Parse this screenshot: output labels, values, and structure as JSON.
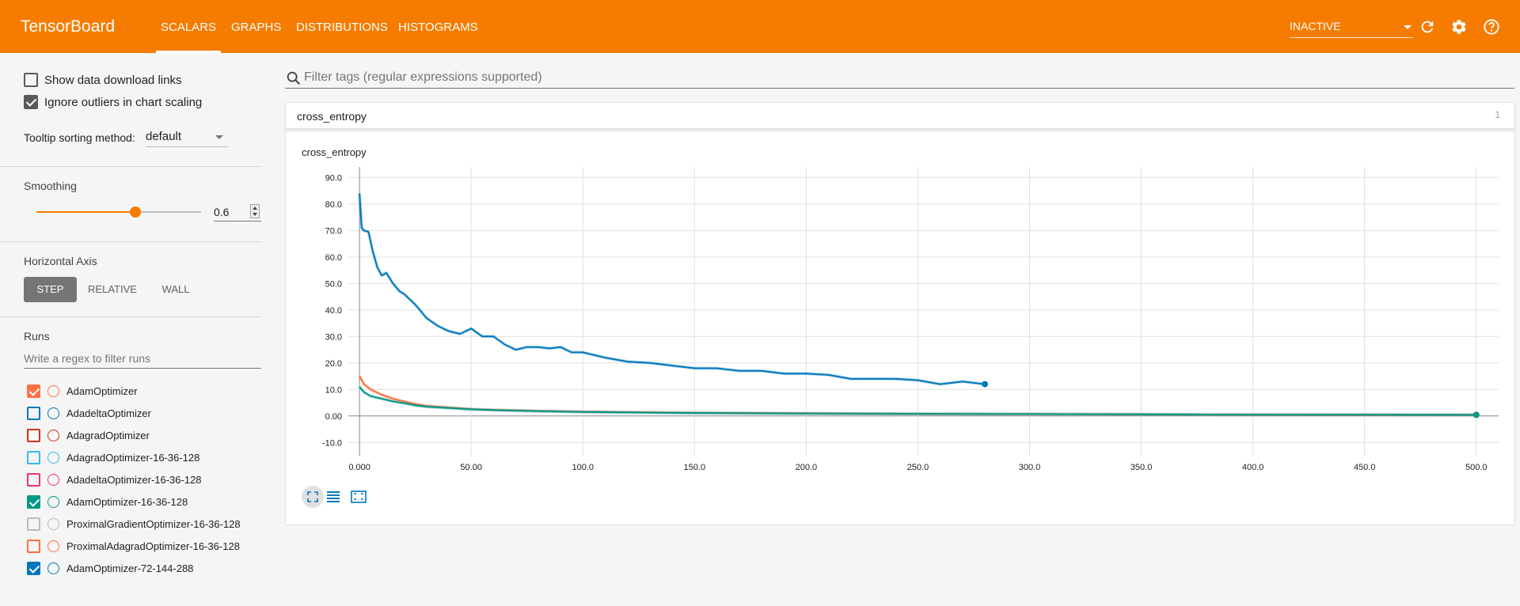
{
  "header": {
    "brand": "TensorBoard",
    "tabs": [
      {
        "label": "SCALARS",
        "active": true
      },
      {
        "label": "GRAPHS",
        "active": false
      },
      {
        "label": "DISTRIBUTIONS",
        "active": false
      },
      {
        "label": "HISTOGRAMS",
        "active": false
      }
    ],
    "status_select": "INACTIVE",
    "icons": [
      "refresh-icon",
      "settings-icon",
      "help-icon"
    ]
  },
  "sidebar": {
    "show_download_links": {
      "label": "Show data download links",
      "checked": false
    },
    "ignore_outliers": {
      "label": "Ignore outliers in chart scaling",
      "checked": true
    },
    "tooltip_sorting": {
      "label": "Tooltip sorting method:",
      "value": "default"
    },
    "smoothing": {
      "title": "Smoothing",
      "value": "0.6",
      "fraction": 0.6
    },
    "horizontal_axis": {
      "title": "Horizontal Axis",
      "options": [
        {
          "label": "STEP",
          "active": true
        },
        {
          "label": "RELATIVE",
          "active": false
        },
        {
          "label": "WALL",
          "active": false
        }
      ]
    },
    "runs": {
      "title": "Runs",
      "filter_placeholder": "Write a regex to filter runs",
      "items": [
        {
          "label": "AdamOptimizer",
          "color": "#ff7043",
          "checked": true
        },
        {
          "label": "AdadeltaOptimizer",
          "color": "#0077bb",
          "checked": false
        },
        {
          "label": "AdagradOptimizer",
          "color": "#cc3311",
          "checked": false
        },
        {
          "label": "AdagradOptimizer-16-36-128",
          "color": "#33bbee",
          "checked": false
        },
        {
          "label": "AdadeltaOptimizer-16-36-128",
          "color": "#ee3377",
          "checked": false
        },
        {
          "label": "AdamOptimizer-16-36-128",
          "color": "#009988",
          "checked": true
        },
        {
          "label": "ProximalGradientOptimizer-16-36-128",
          "color": "#bbbbbb",
          "checked": false
        },
        {
          "label": "ProximalAdagradOptimizer-16-36-128",
          "color": "#ff7043",
          "checked": false
        },
        {
          "label": "AdamOptimizer-72-144-288",
          "color": "#0077bb",
          "checked": true
        }
      ]
    }
  },
  "main": {
    "filter_placeholder": "Filter tags (regular expressions supported)",
    "tag_group": {
      "name": "cross_entropy",
      "count": "1"
    },
    "card": {
      "title": "cross_entropy",
      "buttons": [
        "fit-domain-icon",
        "toggle-y-log-icon",
        "selection-zoom-icon"
      ]
    }
  },
  "chart_data": {
    "type": "line",
    "title": "cross_entropy",
    "xlabel": "",
    "ylabel": "",
    "xlim": [
      -5,
      510
    ],
    "ylim": [
      -15,
      94
    ],
    "x_ticks": [
      "0.000",
      "50.00",
      "100.0",
      "150.0",
      "200.0",
      "250.0",
      "300.0",
      "350.0",
      "400.0",
      "450.0",
      "500.0"
    ],
    "y_ticks": [
      "90.0",
      "80.0",
      "70.0",
      "60.0",
      "50.0",
      "40.0",
      "30.0",
      "20.0",
      "10.0",
      "0.00",
      "-10.0"
    ],
    "series": [
      {
        "name": "AdamOptimizer-72-144-288",
        "color": "#0077bb",
        "x": [
          0,
          1,
          2,
          4,
          6,
          8,
          10,
          12,
          15,
          18,
          20,
          25,
          30,
          35,
          40,
          45,
          50,
          55,
          60,
          65,
          70,
          75,
          80,
          85,
          90,
          95,
          100,
          110,
          120,
          130,
          140,
          150,
          160,
          170,
          180,
          190,
          200,
          210,
          220,
          230,
          240,
          250,
          260,
          270,
          280
        ],
        "y": [
          84,
          71,
          70,
          69.5,
          62,
          56,
          53,
          54,
          50,
          47,
          46,
          42,
          37,
          34,
          32,
          31,
          33,
          30,
          30,
          27,
          25,
          26,
          26,
          25.5,
          26,
          24,
          24,
          22,
          20.5,
          20,
          19,
          18,
          18,
          17,
          17,
          16,
          16,
          15.5,
          14,
          14,
          14,
          13.5,
          12,
          13,
          12
        ]
      },
      {
        "name": "AdamOptimizer",
        "color": "#ff7043",
        "x": [
          0,
          2,
          5,
          10,
          15,
          20,
          25,
          30,
          40,
          50,
          60,
          80,
          100,
          150,
          200,
          250,
          300,
          350,
          400,
          450,
          500
        ],
        "y": [
          15,
          12,
          10,
          8,
          6.5,
          5.5,
          4.5,
          3.8,
          3.2,
          2.6,
          2.3,
          1.9,
          1.6,
          1.2,
          1.0,
          0.8,
          0.7,
          0.6,
          0.5,
          0.4,
          0.4
        ]
      },
      {
        "name": "AdamOptimizer-16-36-128",
        "color": "#009988",
        "x": [
          0,
          2,
          5,
          10,
          15,
          20,
          25,
          30,
          40,
          50,
          60,
          80,
          100,
          150,
          200,
          250,
          300,
          350,
          400,
          450,
          500
        ],
        "y": [
          11,
          9,
          7.5,
          6.5,
          5.5,
          4.8,
          4.0,
          3.5,
          3.0,
          2.5,
          2.2,
          1.8,
          1.5,
          1.1,
          0.9,
          0.8,
          0.7,
          0.6,
          0.5,
          0.5,
          0.4
        ]
      }
    ],
    "grid": true
  }
}
